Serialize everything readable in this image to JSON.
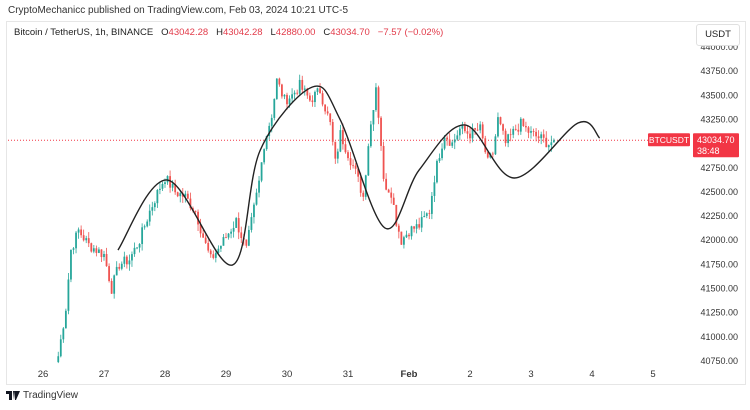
{
  "header": {
    "published": "CryptoMechanicc published on TradingView.com, Feb 03, 2024 10:21 UTC-5"
  },
  "legend": {
    "symbol": "Bitcoin / TetherUS, 1h, BINANCE",
    "o_label": "O",
    "o": "43042.28",
    "h_label": "H",
    "h": "43042.28",
    "l_label": "L",
    "l": "42880.00",
    "c_label": "C",
    "c": "43034.70",
    "change": "−7.57 (−0.02%)"
  },
  "currency_button": "USDT",
  "price_tag": {
    "symbol": "BTCUSDT",
    "price": "43034.70",
    "countdown": "38:48"
  },
  "footer": {
    "brand": "TradingView"
  },
  "colors": {
    "up": "#26a69a",
    "down": "#ef5350",
    "tag": "#f23645",
    "curve": "#222222"
  },
  "chart_data": {
    "type": "candlestick",
    "title": "Bitcoin / TetherUS, 1h, BINANCE",
    "x_unit": "hours since Jan 26 00:00",
    "ylim": [
      40750,
      44000
    ],
    "y_ticks": [
      "44000.00",
      "43750.00",
      "43500.00",
      "43250.00",
      "42750.00",
      "42500.00",
      "42250.00",
      "42000.00",
      "41750.00",
      "41500.00",
      "41250.00",
      "41000.00",
      "40750.00"
    ],
    "x_ticks": [
      {
        "h": 0,
        "label": "26"
      },
      {
        "h": 24,
        "label": "27"
      },
      {
        "h": 48,
        "label": "28"
      },
      {
        "h": 72,
        "label": "29"
      },
      {
        "h": 96,
        "label": "30"
      },
      {
        "h": 120,
        "label": "31"
      },
      {
        "h": 144,
        "label": "Feb",
        "bold": true
      },
      {
        "h": 168,
        "label": "2"
      },
      {
        "h": 192,
        "label": "3"
      },
      {
        "h": 216,
        "label": "4"
      },
      {
        "h": 240,
        "label": "5"
      }
    ],
    "last_price": 43034.7,
    "price_anchors": [
      [
        6,
        40800
      ],
      [
        9,
        41300
      ],
      [
        11,
        41900
      ],
      [
        14,
        42100
      ],
      [
        18,
        41950
      ],
      [
        24,
        41850
      ],
      [
        27,
        41500
      ],
      [
        30,
        41750
      ],
      [
        34,
        41800
      ],
      [
        38,
        42000
      ],
      [
        42,
        42300
      ],
      [
        46,
        42550
      ],
      [
        48,
        42650
      ],
      [
        52,
        42500
      ],
      [
        56,
        42450
      ],
      [
        60,
        42300
      ],
      [
        64,
        41950
      ],
      [
        66,
        41800
      ],
      [
        70,
        41950
      ],
      [
        76,
        42200
      ],
      [
        80,
        41900
      ],
      [
        81,
        42050
      ],
      [
        85,
        42600
      ],
      [
        87,
        43000
      ],
      [
        90,
        43300
      ],
      [
        92,
        43650
      ],
      [
        95,
        43450
      ],
      [
        98,
        43500
      ],
      [
        101,
        43600
      ],
      [
        105,
        43450
      ],
      [
        109,
        43550
      ],
      [
        113,
        43200
      ],
      [
        115,
        42800
      ],
      [
        117,
        43100
      ],
      [
        120,
        42900
      ],
      [
        123,
        42700
      ],
      [
        126,
        42450
      ],
      [
        128,
        43000
      ],
      [
        131,
        43600
      ],
      [
        133,
        43000
      ],
      [
        134,
        42600
      ],
      [
        137,
        42500
      ],
      [
        139,
        42200
      ],
      [
        141,
        42000
      ],
      [
        144,
        42100
      ],
      [
        148,
        42150
      ],
      [
        152,
        42300
      ],
      [
        154,
        42650
      ],
      [
        156,
        42900
      ],
      [
        158,
        43100
      ],
      [
        161,
        43000
      ],
      [
        164,
        43150
      ],
      [
        168,
        43100
      ],
      [
        172,
        43150
      ],
      [
        175,
        42800
      ],
      [
        177,
        42900
      ],
      [
        179,
        43250
      ],
      [
        182,
        43000
      ],
      [
        186,
        43150
      ],
      [
        188,
        43200
      ],
      [
        192,
        43100
      ],
      [
        196,
        43050
      ],
      [
        199,
        43000
      ],
      [
        201,
        43034.7
      ]
    ],
    "projection_curve": [
      [
        29.5,
        41898
      ],
      [
        49,
        42623
      ],
      [
        74.5,
        41743
      ],
      [
        85.5,
        42934
      ],
      [
        106,
        43586
      ],
      [
        117,
        43244
      ],
      [
        134.5,
        42127
      ],
      [
        148,
        42727
      ],
      [
        166,
        43193
      ],
      [
        185.5,
        42644
      ],
      [
        210.5,
        43213
      ],
      [
        219,
        43058
      ]
    ]
  }
}
